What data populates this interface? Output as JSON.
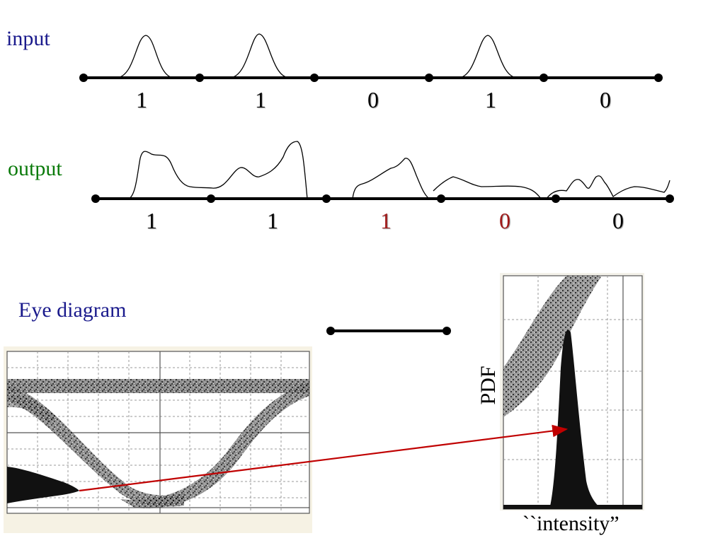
{
  "labels": {
    "input": "input",
    "output": "output",
    "eye_diagram": "Eye  diagram",
    "pdf": "PDF",
    "intensity": "``intensity”"
  },
  "input_bits": [
    "1",
    "1",
    "0",
    "1",
    "0"
  ],
  "output_bits": [
    "1",
    "1",
    "1",
    "0",
    "0"
  ],
  "output_bit_colors": [
    "#000000",
    "#000000",
    "#a01818",
    "#a01818",
    "#000000"
  ],
  "colors": {
    "input_label": "#1a1a8c",
    "output_label": "#0a7a0a",
    "eye_label": "#1a1a8c",
    "arrow": "#c00000",
    "error_bit": "#a01818"
  }
}
